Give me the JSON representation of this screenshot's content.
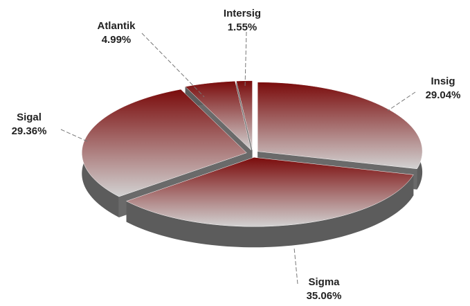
{
  "chart_data": {
    "type": "pie",
    "three_d": true,
    "categories": [
      "Insig",
      "Sigma",
      "Sigal",
      "Atlantik",
      "Intersig"
    ],
    "values": [
      29.04,
      35.06,
      29.36,
      4.99,
      1.55
    ],
    "value_labels": [
      "29.04%",
      "35.06%",
      "29.36%",
      "4.99%",
      "1.55%"
    ],
    "colors": {
      "top_start": "#7a0b0b",
      "top_end": "#d2d2d2",
      "side": "#5c5c5c"
    }
  }
}
